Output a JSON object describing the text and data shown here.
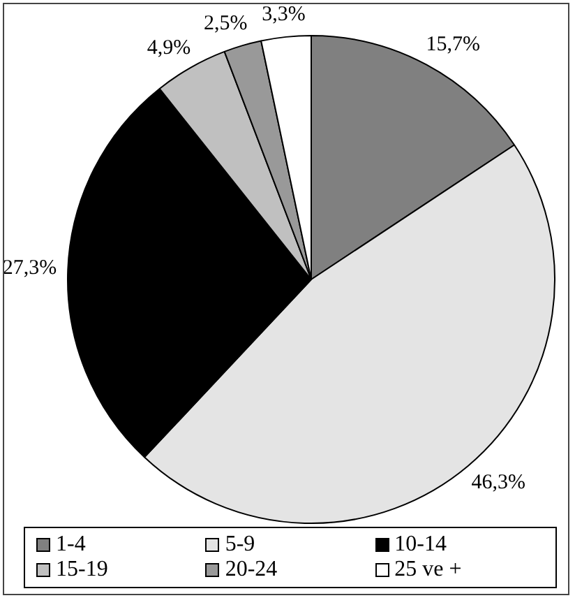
{
  "chart_data": {
    "type": "pie",
    "categories": [
      "1-4",
      "5-9",
      "10-14",
      "15-19",
      "20-24",
      "25 ve +"
    ],
    "values": [
      15.7,
      46.3,
      27.3,
      4.9,
      2.5,
      3.3
    ],
    "value_labels": [
      "15,7%",
      "46,3%",
      "27,3%",
      "4,9%",
      "2,5%",
      "3,3%"
    ],
    "colors": [
      "#808080",
      "#e4e4e4",
      "#000000",
      "#c0c0c0",
      "#999999",
      "#ffffff"
    ],
    "legend": "bottom"
  }
}
